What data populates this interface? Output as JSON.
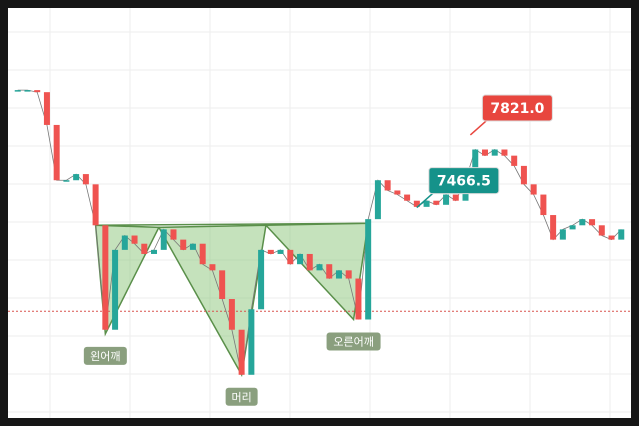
{
  "chart_data": {
    "type": "line",
    "x": [
      0,
      1,
      2,
      3,
      4,
      5,
      6,
      7,
      8,
      9,
      10,
      11,
      12,
      13,
      14,
      15,
      16,
      17,
      18,
      19,
      20,
      21,
      22,
      23,
      24,
      25,
      26,
      27,
      28,
      29,
      30,
      31,
      32,
      33,
      34,
      35,
      36,
      37,
      38,
      39,
      40,
      41,
      42,
      43,
      44,
      45,
      46,
      47,
      48,
      49,
      50,
      51,
      52,
      53,
      54,
      55,
      56,
      57,
      58,
      59,
      60,
      61,
      62
    ],
    "values": [
      8040,
      8040,
      8030,
      7870,
      7600,
      7600,
      7630,
      7580,
      7380,
      6870,
      7260,
      7330,
      7290,
      7240,
      7260,
      7360,
      7310,
      7260,
      7290,
      7190,
      7160,
      7020,
      6870,
      6650,
      6970,
      7260,
      7240,
      7260,
      7190,
      7240,
      7160,
      7190,
      7120,
      7160,
      7120,
      6920,
      7410,
      7600,
      7550,
      7530,
      7500,
      7470,
      7500,
      7480,
      7530,
      7500,
      7600,
      7750,
      7720,
      7750,
      7720,
      7670,
      7580,
      7530,
      7430,
      7310,
      7360,
      7380,
      7410,
      7380,
      7330,
      7310,
      7360
    ],
    "xlim": [
      -1,
      63
    ],
    "ylim": [
      6400,
      8480
    ],
    "reference_line": {
      "value": 6960,
      "color": "#d9534f"
    },
    "pattern": {
      "x": [
        8,
        9,
        14.5,
        23,
        25.5,
        34.5,
        36
      ],
      "y": [
        7380,
        6850,
        7370,
        6650,
        7380,
        6920,
        7390
      ],
      "color": "#7fbf6a"
    },
    "annotations": [
      {
        "text": "왼어깨",
        "x": 9,
        "y": 6850
      },
      {
        "text": "머리",
        "x": 23,
        "y": 6650
      },
      {
        "text": "오른어깨",
        "x": 34.5,
        "y": 6920
      }
    ],
    "callouts": {
      "x": [
        41,
        46.5
      ],
      "values": [
        7466.5,
        7821
      ],
      "value_labels": [
        "7466.5",
        "7821.0"
      ],
      "colors": [
        "#15928a",
        "#e8463e"
      ]
    },
    "up_color": "#26a69a",
    "down_color": "#ef5350"
  }
}
